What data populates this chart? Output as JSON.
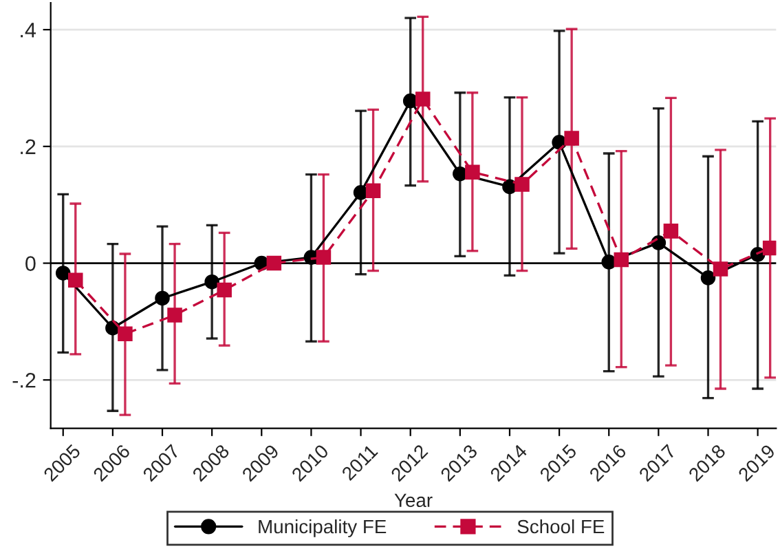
{
  "chart_data": {
    "type": "line",
    "xlabel": "Year",
    "xlim": [
      2004.75,
      2019.37
    ],
    "xticks": [
      2005,
      2006,
      2007,
      2008,
      2009,
      2010,
      2011,
      2012,
      2013,
      2014,
      2015,
      2016,
      2017,
      2018,
      2019
    ],
    "ylim": [
      -0.283,
      0.446
    ],
    "yticks": [
      {
        "value": -0.2,
        "label": "-.2"
      },
      0,
      {
        "value": 0.2,
        "label": ".2"
      },
      {
        "value": 0.4,
        "label": ".4"
      }
    ],
    "grid": "y",
    "legend": "bottom",
    "ref_lines": [
      {
        "axis": "y",
        "value": 0,
        "color": "#000000"
      }
    ],
    "series": [
      {
        "name": "Municipality FE",
        "color": "#000000",
        "marker": "circle",
        "line_style": "solid",
        "x": [
          2005,
          2006,
          2007,
          2008,
          2009,
          2010,
          2011,
          2012,
          2013,
          2014,
          2015,
          2016,
          2017,
          2018,
          2019
        ],
        "values": [
          -0.017,
          -0.111,
          -0.06,
          -0.032,
          0,
          0.01,
          0.121,
          0.278,
          0.153,
          0.131,
          0.207,
          0.002,
          0.035,
          -0.025,
          0.015
        ],
        "errors": [
          [
            -0.153,
            0.118
          ],
          [
            -0.253,
            0.033
          ],
          [
            -0.183,
            0.063
          ],
          [
            -0.129,
            0.065
          ],
          null,
          [
            -0.134,
            0.152
          ],
          [
            -0.019,
            0.261
          ],
          [
            0.133,
            0.42
          ],
          [
            0.012,
            0.292
          ],
          [
            -0.021,
            0.284
          ],
          [
            0.017,
            0.398
          ],
          [
            -0.185,
            0.188
          ],
          [
            -0.194,
            0.265
          ],
          [
            -0.231,
            0.183
          ],
          [
            -0.215,
            0.243
          ]
        ]
      },
      {
        "name": "School FE",
        "color": "#c4093b",
        "marker": "square",
        "line_style": "dashed",
        "x": [
          2005.25,
          2006.25,
          2007.25,
          2008.25,
          2009.25,
          2010.25,
          2011.25,
          2012.25,
          2013.25,
          2014.25,
          2015.25,
          2016.25,
          2017.25,
          2018.25,
          2019.25
        ],
        "values": [
          -0.029,
          -0.121,
          -0.089,
          -0.046,
          0,
          0.01,
          0.124,
          0.281,
          0.156,
          0.135,
          0.214,
          0.006,
          0.055,
          -0.01,
          0.026
        ],
        "errors": [
          [
            -0.156,
            0.102
          ],
          [
            -0.26,
            0.016
          ],
          [
            -0.206,
            0.033
          ],
          [
            -0.141,
            0.052
          ],
          null,
          [
            -0.134,
            0.152
          ],
          [
            -0.013,
            0.263
          ],
          [
            0.14,
            0.422
          ],
          [
            0.021,
            0.292
          ],
          [
            -0.013,
            0.284
          ],
          [
            0.025,
            0.401
          ],
          [
            -0.178,
            0.192
          ],
          [
            -0.175,
            0.283
          ],
          [
            -0.215,
            0.194
          ],
          [
            -0.196,
            0.248
          ]
        ]
      }
    ]
  }
}
